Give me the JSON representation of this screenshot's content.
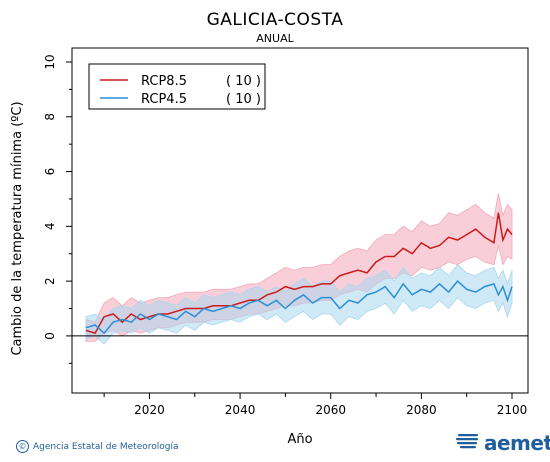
{
  "title": "GALICIA-COSTA",
  "subtitle": "ANUAL",
  "credit": "Agencia Estatal de Meteorología",
  "logo": "aemet",
  "chart_data": {
    "type": "line",
    "xlabel": "Año",
    "ylabel": "Cambio de la temperatura mínima (ºC)",
    "xlim": [
      2006,
      2100
    ],
    "ylim": [
      -1.5,
      10
    ],
    "x_ticks": [
      2020,
      2040,
      2060,
      2080,
      2100
    ],
    "y_ticks": [
      0,
      2,
      4,
      6,
      8,
      10
    ],
    "reference_line": 0,
    "legend_position": "top-left",
    "series": [
      {
        "name": "RCP8.5",
        "count": "( 10 )",
        "color": "#cc1a1a",
        "band_color": "#f2a8b8",
        "x": [
          2006,
          2008,
          2010,
          2012,
          2014,
          2016,
          2018,
          2020,
          2022,
          2024,
          2026,
          2028,
          2030,
          2032,
          2034,
          2036,
          2038,
          2040,
          2042,
          2044,
          2046,
          2048,
          2050,
          2052,
          2054,
          2056,
          2058,
          2060,
          2062,
          2064,
          2066,
          2068,
          2070,
          2072,
          2074,
          2076,
          2078,
          2080,
          2082,
          2084,
          2086,
          2088,
          2090,
          2092,
          2094,
          2096,
          2097,
          2098,
          2099,
          2100
        ],
        "values": [
          0.2,
          0.1,
          0.7,
          0.8,
          0.5,
          0.8,
          0.6,
          0.7,
          0.8,
          0.8,
          0.9,
          1.0,
          1.0,
          1.0,
          1.1,
          1.1,
          1.1,
          1.2,
          1.3,
          1.3,
          1.5,
          1.6,
          1.8,
          1.7,
          1.8,
          1.8,
          1.9,
          1.9,
          2.2,
          2.3,
          2.4,
          2.3,
          2.7,
          2.9,
          2.9,
          3.2,
          3.0,
          3.4,
          3.2,
          3.3,
          3.6,
          3.5,
          3.7,
          3.9,
          3.6,
          3.4,
          4.5,
          3.5,
          3.9,
          3.7
        ],
        "band_low": [
          -0.2,
          -0.2,
          0.1,
          0.2,
          0.0,
          0.2,
          0.1,
          0.2,
          0.3,
          0.3,
          0.4,
          0.5,
          0.5,
          0.5,
          0.6,
          0.6,
          0.6,
          0.7,
          0.8,
          0.8,
          0.9,
          1.0,
          1.1,
          1.1,
          1.2,
          1.2,
          1.3,
          1.3,
          1.5,
          1.6,
          1.7,
          1.6,
          1.9,
          2.1,
          2.1,
          2.3,
          2.2,
          2.5,
          2.4,
          2.5,
          2.7,
          2.6,
          2.8,
          2.9,
          2.7,
          2.6,
          3.3,
          2.6,
          2.9,
          2.8
        ],
        "band_high": [
          0.6,
          0.5,
          1.2,
          1.4,
          1.1,
          1.4,
          1.2,
          1.3,
          1.4,
          1.4,
          1.5,
          1.6,
          1.6,
          1.6,
          1.7,
          1.7,
          1.7,
          1.8,
          1.9,
          1.9,
          2.1,
          2.3,
          2.5,
          2.4,
          2.5,
          2.5,
          2.6,
          2.6,
          2.9,
          3.1,
          3.2,
          3.1,
          3.5,
          3.7,
          3.7,
          4.0,
          3.8,
          4.2,
          4.0,
          4.1,
          4.5,
          4.4,
          4.6,
          4.8,
          4.5,
          4.3,
          5.2,
          4.4,
          4.8,
          4.6
        ]
      },
      {
        "name": "RCP4.5",
        "count": "( 10 )",
        "color": "#2a8fd6",
        "band_color": "#a9d7ee",
        "x": [
          2006,
          2008,
          2010,
          2012,
          2014,
          2016,
          2018,
          2020,
          2022,
          2024,
          2026,
          2028,
          2030,
          2032,
          2034,
          2036,
          2038,
          2040,
          2042,
          2044,
          2046,
          2048,
          2050,
          2052,
          2054,
          2056,
          2058,
          2060,
          2062,
          2064,
          2066,
          2068,
          2070,
          2072,
          2074,
          2076,
          2078,
          2080,
          2082,
          2084,
          2086,
          2088,
          2090,
          2092,
          2094,
          2096,
          2097,
          2098,
          2099,
          2100
        ],
        "values": [
          0.3,
          0.4,
          0.1,
          0.5,
          0.6,
          0.5,
          0.8,
          0.6,
          0.8,
          0.7,
          0.6,
          0.9,
          0.7,
          1.0,
          0.9,
          1.0,
          1.1,
          1.0,
          1.2,
          1.3,
          1.1,
          1.3,
          1.0,
          1.3,
          1.5,
          1.2,
          1.4,
          1.4,
          1.0,
          1.3,
          1.2,
          1.5,
          1.6,
          1.8,
          1.4,
          1.9,
          1.5,
          1.7,
          1.6,
          1.9,
          1.6,
          2.0,
          1.7,
          1.6,
          1.8,
          1.9,
          1.5,
          1.8,
          1.3,
          1.8
        ],
        "band_low": [
          -0.1,
          0.0,
          -0.3,
          0.1,
          0.2,
          0.1,
          0.3,
          0.1,
          0.3,
          0.2,
          0.1,
          0.4,
          0.2,
          0.5,
          0.4,
          0.5,
          0.6,
          0.5,
          0.7,
          0.8,
          0.6,
          0.8,
          0.5,
          0.7,
          0.9,
          0.6,
          0.8,
          0.8,
          0.4,
          0.7,
          0.6,
          0.9,
          1.0,
          1.2,
          0.8,
          1.3,
          0.9,
          1.1,
          1.0,
          1.3,
          1.0,
          1.4,
          1.1,
          1.0,
          1.2,
          1.3,
          0.9,
          1.2,
          0.7,
          1.2
        ],
        "band_high": [
          0.7,
          0.8,
          0.6,
          1.0,
          1.1,
          1.0,
          1.3,
          1.1,
          1.3,
          1.2,
          1.1,
          1.4,
          1.2,
          1.5,
          1.4,
          1.5,
          1.6,
          1.5,
          1.7,
          1.8,
          1.6,
          1.8,
          1.6,
          1.9,
          2.1,
          1.8,
          2.0,
          2.0,
          1.6,
          1.9,
          1.8,
          2.1,
          2.2,
          2.4,
          2.0,
          2.5,
          2.1,
          2.3,
          2.2,
          2.5,
          2.2,
          2.6,
          2.3,
          2.2,
          2.4,
          2.5,
          2.1,
          2.4,
          1.9,
          2.4
        ]
      }
    ]
  }
}
